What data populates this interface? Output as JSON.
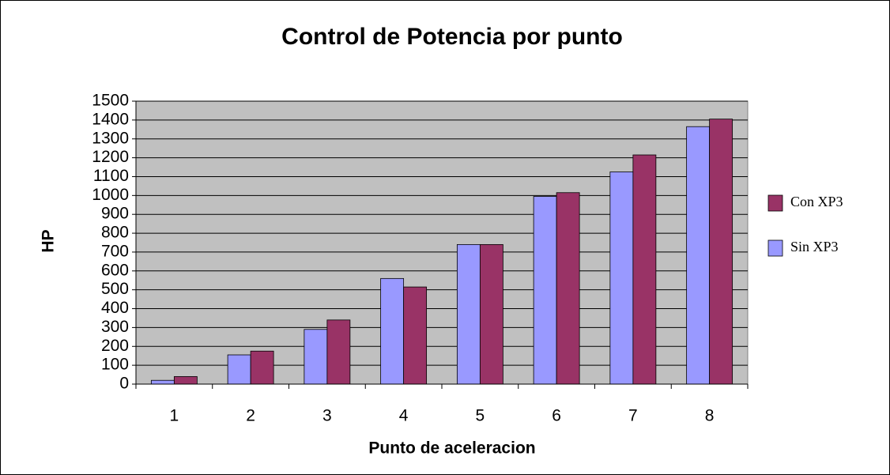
{
  "chart_data": {
    "type": "bar",
    "title": "Control de Potencia por punto",
    "x_label": "Punto de aceleracion",
    "y_label": "HP",
    "categories": [
      "1",
      "2",
      "3",
      "4",
      "5",
      "6",
      "7",
      "8"
    ],
    "series": [
      {
        "name": "Sin XP3",
        "color": "#9999ff",
        "values": [
          20,
          155,
          290,
          560,
          740,
          995,
          1125,
          1365
        ]
      },
      {
        "name": "Con XP3",
        "color": "#993366",
        "values": [
          40,
          175,
          340,
          515,
          740,
          1015,
          1215,
          1405
        ]
      }
    ],
    "ylim": [
      0,
      1500
    ],
    "yticks": [
      0,
      100,
      200,
      300,
      400,
      500,
      600,
      700,
      800,
      900,
      1000,
      1100,
      1200,
      1300,
      1400,
      1500
    ],
    "grid": true
  }
}
